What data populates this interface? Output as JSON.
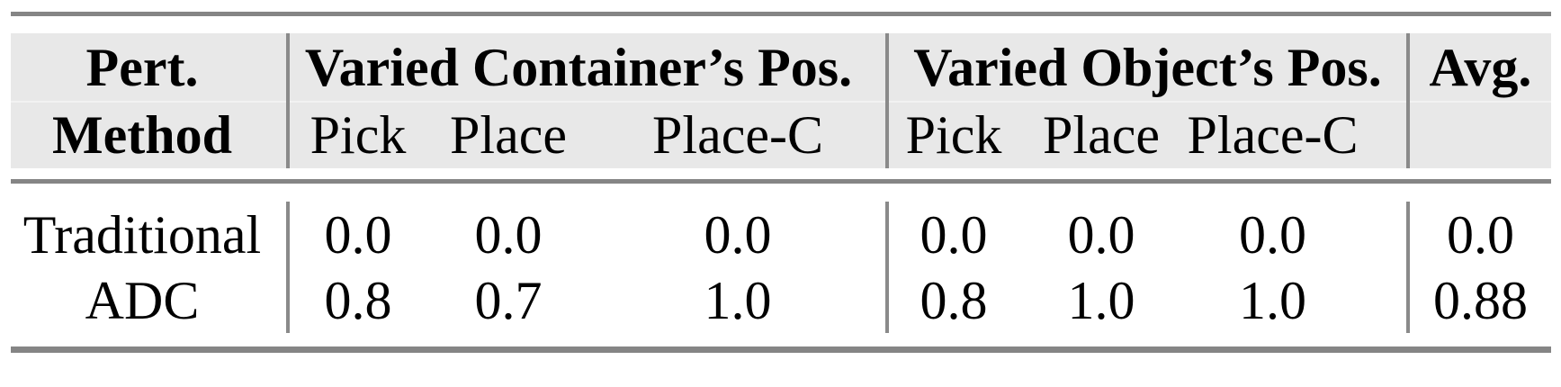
{
  "table": {
    "header": {
      "col1_top": "Pert.",
      "col1_bottom": "Method",
      "group1": "Varied Container’s Pos.",
      "group2": "Varied Object’s Pos.",
      "avg": "Avg.",
      "subcols": [
        "Pick",
        "Place",
        "Place-C"
      ]
    },
    "rows": [
      {
        "method": "Traditional",
        "values": [
          "0.0",
          "0.0",
          "0.0",
          "0.0",
          "0.0",
          "0.0"
        ],
        "avg": "0.0"
      },
      {
        "method": "ADC",
        "values": [
          "0.8",
          "0.7",
          "1.0",
          "0.8",
          "1.0",
          "1.0"
        ],
        "avg": "0.88"
      }
    ],
    "colors": {
      "header_bg": "#e8e8e8",
      "rule": "#858585",
      "divider": "#8a8a8a",
      "text": "#000000"
    }
  }
}
